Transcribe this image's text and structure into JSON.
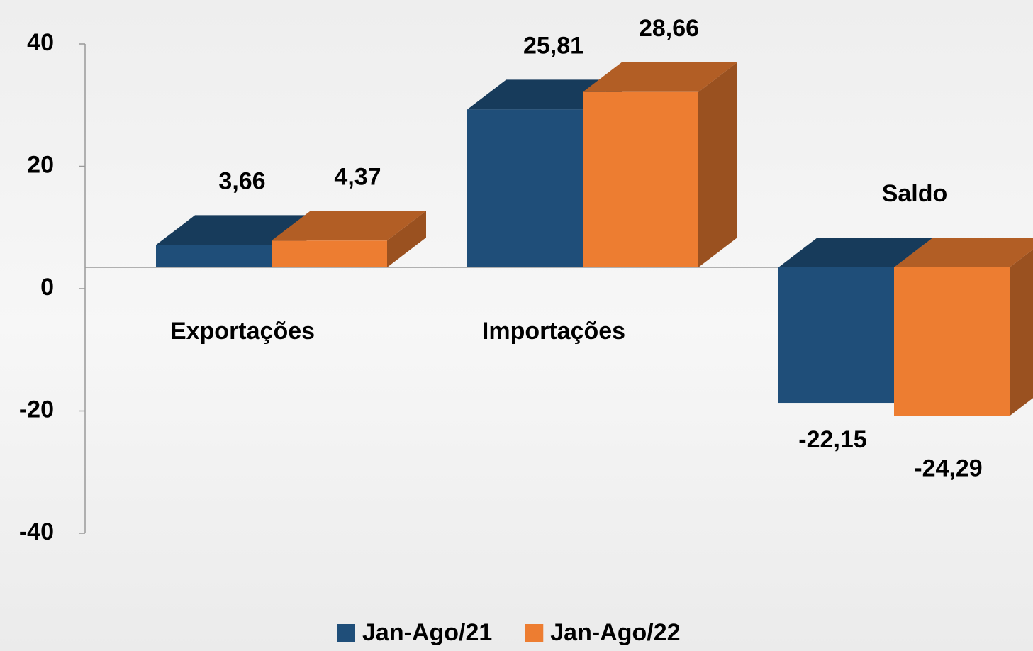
{
  "chart_data": {
    "type": "bar3d",
    "categories": [
      "Exportações",
      "Importações",
      "Saldo"
    ],
    "series": [
      {
        "name": "Jan-Ago/21",
        "color": "#1f4e79",
        "values": [
          3.66,
          25.81,
          -22.15
        ],
        "value_labels": [
          "3,66",
          "25,81",
          "-22,15"
        ]
      },
      {
        "name": "Jan-Ago/22",
        "color": "#ed7d31",
        "values": [
          4.37,
          28.66,
          -24.29
        ],
        "value_labels": [
          "4,37",
          "28,66",
          "-24,29"
        ]
      }
    ],
    "ylim": [
      -40,
      40
    ],
    "yticks": [
      -40,
      -20,
      0,
      20,
      40
    ],
    "legend": "bottom"
  }
}
